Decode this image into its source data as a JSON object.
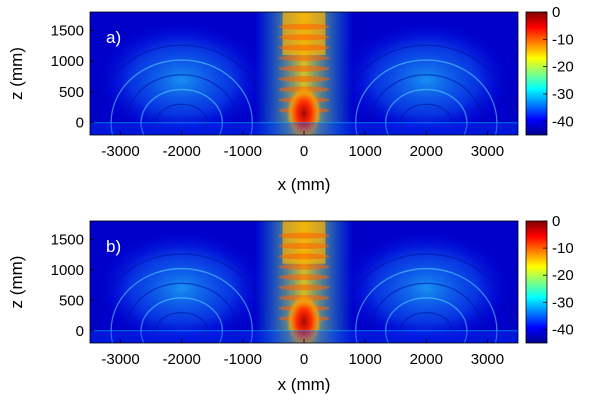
{
  "chart_data": [
    {
      "type": "heatmap",
      "panel_label": "a)",
      "xlabel": "x (mm)",
      "ylabel": "z (mm)",
      "xlim": [
        -3500,
        3500
      ],
      "ylim": [
        -200,
        1800
      ],
      "x_ticks": [
        -3000,
        -2000,
        -1000,
        0,
        1000,
        2000,
        3000
      ],
      "y_ticks": [
        0,
        500,
        1000,
        1500
      ],
      "colorbar": {
        "ticks": [
          0,
          -10,
          -20,
          -30,
          -40
        ],
        "range": [
          -45,
          0
        ]
      },
      "colors": [
        "#00008f",
        "#0000ff",
        "#00ffff",
        "#ffff00",
        "#ff0000",
        "#800000"
      ]
    },
    {
      "type": "heatmap",
      "panel_label": "b)",
      "xlabel": "x (mm)",
      "ylabel": "z (mm)",
      "xlim": [
        -3500,
        3500
      ],
      "ylim": [
        -200,
        1800
      ],
      "x_ticks": [
        -3000,
        -2000,
        -1000,
        0,
        1000,
        2000,
        3000
      ],
      "y_ticks": [
        0,
        500,
        1000,
        1500
      ],
      "colorbar": {
        "ticks": [
          0,
          -10,
          -20,
          -30,
          -40
        ],
        "range": [
          -45,
          0
        ]
      },
      "colors": [
        "#00008f",
        "#0000ff",
        "#00ffff",
        "#ffff00",
        "#ff0000",
        "#800000"
      ]
    }
  ]
}
